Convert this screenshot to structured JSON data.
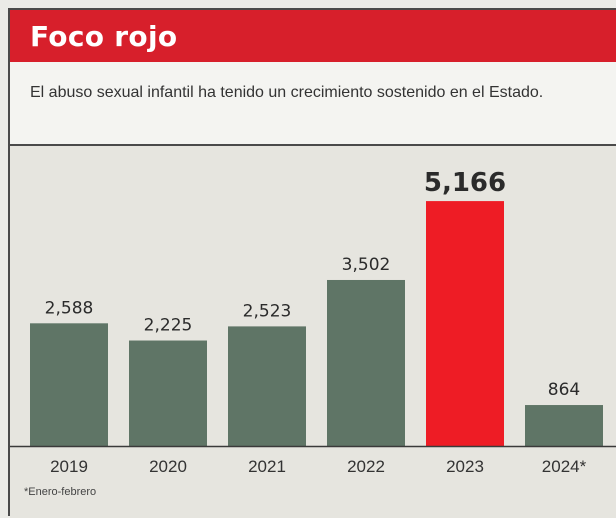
{
  "header": {
    "title": "Foco rojo"
  },
  "subtitle": "El abuso sexual infantil ha tenido un crecimiento sostenido en el Estado.",
  "footnote": "*Enero-febrero",
  "colors": {
    "bar_default": "#5f7566",
    "bar_highlight": "#ee1c25",
    "header_bg": "#d71f2b"
  },
  "chart_data": {
    "type": "bar",
    "categories": [
      "2019",
      "2020",
      "2021",
      "2022",
      "2023",
      "2024*"
    ],
    "values": [
      2588,
      2225,
      2523,
      3502,
      5166,
      864
    ],
    "value_labels": [
      "2,588",
      "2,225",
      "2,523",
      "3,502",
      "5,166",
      "864"
    ],
    "highlight_index": 4,
    "title": "Foco rojo",
    "subtitle": "El abuso sexual infantil ha tenido un crecimiento sostenido en el Estado.",
    "xlabel": "",
    "ylabel": "",
    "ylim": [
      0,
      5400
    ],
    "grid": false,
    "legend": "none"
  }
}
